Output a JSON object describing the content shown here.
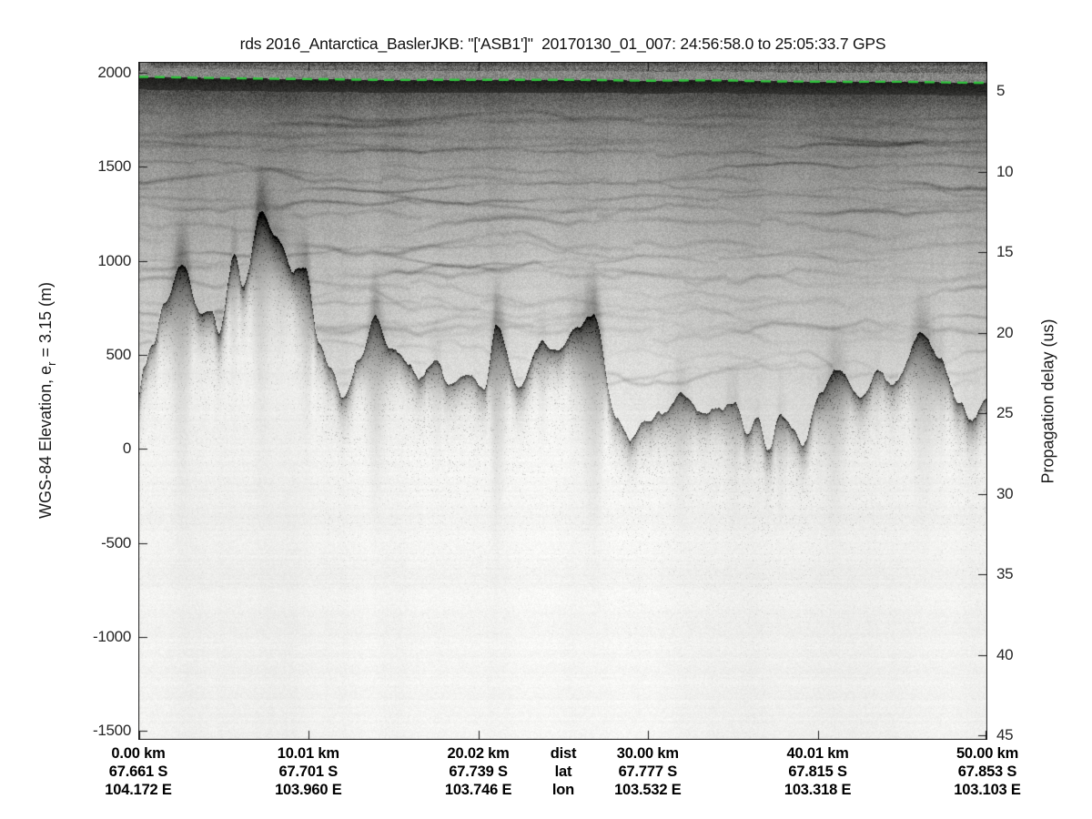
{
  "figure": {
    "title": "rds 2016_Antarctica_BaslerJKB: \"['ASB1']\"  20170130_01_007: 24:56:58.0 to 25:05:33.7 GPS"
  },
  "axes": {
    "left": {
      "label_prefix": "WGS-84 Elevation, e",
      "label_sub": "r",
      "label_suffix": " = 3.15 (m)",
      "ticks": [
        2000,
        1500,
        1000,
        500,
        0,
        -500,
        -1000,
        -1500
      ]
    },
    "right": {
      "label": "Propagation delay (us)",
      "ticks": [
        5,
        10,
        15,
        20,
        25,
        30,
        35,
        40,
        45
      ]
    },
    "bottom": {
      "row_headers": [
        "dist",
        "lat",
        "lon"
      ],
      "columns": [
        {
          "km": 0,
          "dist": "0.00 km",
          "lat": "67.661 S",
          "lon": "104.172 E"
        },
        {
          "km": 10.01,
          "dist": "10.01 km",
          "lat": "67.701 S",
          "lon": "103.960 E"
        },
        {
          "km": 20.02,
          "dist": "20.02 km",
          "lat": "67.739 S",
          "lon": "103.746 E"
        },
        {
          "km": 30.0,
          "dist": "30.00 km",
          "lat": "67.777 S",
          "lon": "103.532 E"
        },
        {
          "km": 40.01,
          "dist": "40.01 km",
          "lat": "67.815 S",
          "lon": "103.318 E"
        },
        {
          "km": 50.0,
          "dist": "50.00 km",
          "lat": "67.853 S",
          "lon": "103.103 E"
        }
      ]
    }
  },
  "style": {
    "surface_line_green": "#2fc43c",
    "text_color": "#262626",
    "title_color": "#111111",
    "bold_label_color": "#000000",
    "axis_color": "#1a1a1a",
    "background": "#ffffff"
  },
  "chart_data": {
    "type": "heatmap",
    "title": "rds 2016_Antarctica_BaslerJKB: \"['ASB1']\"  20170130_01_007: 24:56:58.0 to 25:05:33.7 GPS",
    "ylabel_left": "WGS-84 Elevation, e_r = 3.15 (m)",
    "ylabel_right": "Propagation delay (us)",
    "xlabel_rows": [
      "dist",
      "lat",
      "lon"
    ],
    "x_range_km": [
      0,
      50
    ],
    "x_ticks_km": [
      0,
      10.01,
      20.02,
      30.0,
      40.01,
      50.0
    ],
    "latitudes_deg_S": [
      67.661,
      67.701,
      67.739,
      67.777,
      67.815,
      67.853
    ],
    "longitudes_deg_E": [
      104.172,
      103.96,
      103.746,
      103.532,
      103.318,
      103.103
    ],
    "elevation_ticks_m": [
      2000,
      1500,
      1000,
      500,
      0,
      -500,
      -1000,
      -1500
    ],
    "elevation_range_m": [
      -1550,
      2060
    ],
    "delay_ticks_us": [
      5,
      10,
      15,
      20,
      25,
      30,
      35,
      40,
      45
    ],
    "colormap": "grayscale, dark = strong radar echo, white = weak echo",
    "surface_line": {
      "color": "#2fc43c",
      "style": "dashed",
      "elevation_m_start": 1966,
      "elevation_m_end": 1942
    },
    "bed_profile_km_elev_m": [
      [
        0,
        306
      ],
      [
        0.32,
        451
      ],
      [
        0.86,
        548
      ],
      [
        1.5,
        766
      ],
      [
        2.57,
        1010
      ],
      [
        3.75,
        708
      ],
      [
        4.29,
        742
      ],
      [
        4.72,
        606
      ],
      [
        5.63,
        1071
      ],
      [
        6.16,
        901
      ],
      [
        7.29,
        1284
      ],
      [
        8.09,
        1138
      ],
      [
        9.16,
        950
      ],
      [
        9.81,
        945
      ],
      [
        10.61,
        562
      ],
      [
        11.31,
        412
      ],
      [
        12.06,
        258
      ],
      [
        13.02,
        451
      ],
      [
        13.99,
        727
      ],
      [
        14.79,
        572
      ],
      [
        15.97,
        500
      ],
      [
        16.51,
        412
      ],
      [
        17.58,
        461
      ],
      [
        18.27,
        340
      ],
      [
        19.56,
        378
      ],
      [
        20.36,
        282
      ],
      [
        21.06,
        620
      ],
      [
        22.4,
        282
      ],
      [
        23.85,
        548
      ],
      [
        24.7,
        500
      ],
      [
        25.62,
        596
      ],
      [
        26.8,
        683
      ],
      [
        28.14,
        127
      ],
      [
        28.94,
        64
      ],
      [
        29.9,
        112
      ],
      [
        30.81,
        175
      ],
      [
        31.94,
        306
      ],
      [
        33.12,
        209
      ],
      [
        34.19,
        233
      ],
      [
        35.16,
        248
      ],
      [
        35.8,
        64
      ],
      [
        36.5,
        161
      ],
      [
        37.03,
        -23
      ],
      [
        37.84,
        175
      ],
      [
        38.48,
        112
      ],
      [
        39.12,
        25
      ],
      [
        40.09,
        306
      ],
      [
        41.16,
        475
      ],
      [
        42.66,
        296
      ],
      [
        43.46,
        388
      ],
      [
        44.53,
        306
      ],
      [
        46.14,
        582
      ],
      [
        47.21,
        485
      ],
      [
        48.28,
        272
      ],
      [
        49.09,
        195
      ],
      [
        50,
        272
      ]
    ]
  }
}
